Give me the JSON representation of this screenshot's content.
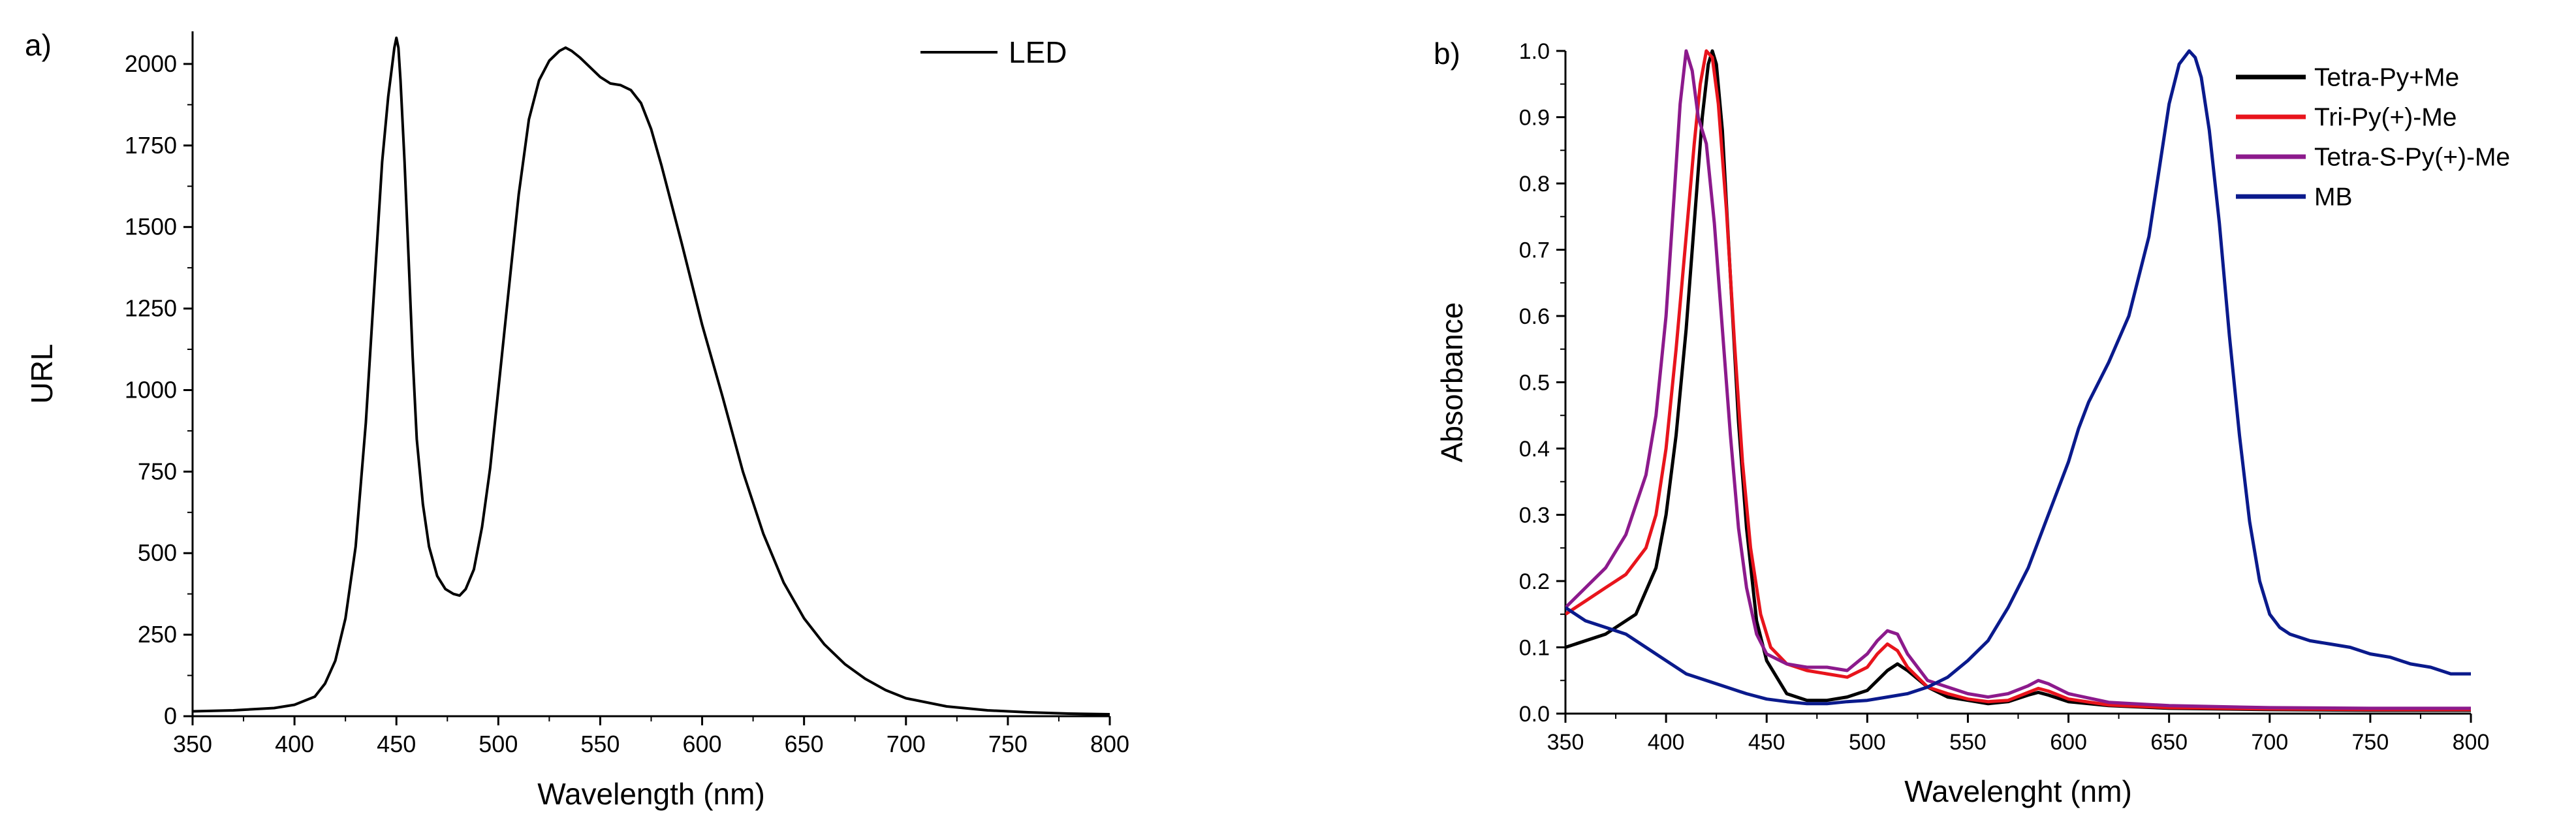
{
  "chart_data": [
    {
      "type": "line",
      "panel_label": "a)",
      "title": "",
      "xlabel": "Wavelength (nm)",
      "ylabel": "URL",
      "xlim": [
        350,
        800
      ],
      "ylim": [
        0,
        2100
      ],
      "xticks": [
        350,
        400,
        450,
        500,
        550,
        600,
        650,
        700,
        750,
        800
      ],
      "yticks": [
        0,
        250,
        500,
        750,
        1000,
        1250,
        1500,
        1750,
        2000
      ],
      "legend_position": "top-right",
      "series": [
        {
          "name": "LED",
          "color": "#000000",
          "x": [
            350,
            370,
            390,
            400,
            410,
            415,
            420,
            425,
            430,
            435,
            440,
            443,
            446,
            448,
            449,
            450,
            451,
            452,
            454,
            456,
            458,
            460,
            463,
            466,
            470,
            474,
            478,
            481,
            484,
            488,
            492,
            496,
            500,
            505,
            510,
            515,
            520,
            525,
            530,
            533,
            536,
            540,
            545,
            550,
            555,
            560,
            565,
            570,
            575,
            580,
            590,
            600,
            610,
            620,
            630,
            640,
            650,
            660,
            670,
            680,
            690,
            700,
            720,
            740,
            760,
            780,
            800
          ],
          "y": [
            15,
            18,
            25,
            35,
            60,
            100,
            170,
            300,
            520,
            900,
            1400,
            1700,
            1900,
            2000,
            2050,
            2080,
            2050,
            1950,
            1700,
            1400,
            1100,
            850,
            650,
            520,
            430,
            390,
            375,
            370,
            390,
            450,
            580,
            760,
            1000,
            1300,
            1600,
            1830,
            1950,
            2010,
            2040,
            2050,
            2040,
            2020,
            1990,
            1960,
            1940,
            1935,
            1920,
            1880,
            1800,
            1690,
            1450,
            1200,
            980,
            750,
            560,
            410,
            300,
            220,
            160,
            115,
            80,
            55,
            30,
            18,
            12,
            8,
            6
          ]
        }
      ]
    },
    {
      "type": "line",
      "panel_label": "b)",
      "title": "",
      "xlabel": "Wavelenght (nm)",
      "ylabel": "Absorbance",
      "xlim": [
        350,
        800
      ],
      "ylim": [
        0,
        1.0
      ],
      "xticks": [
        350,
        400,
        450,
        500,
        550,
        600,
        650,
        700,
        750,
        800
      ],
      "yticks": [
        0.0,
        0.1,
        0.2,
        0.3,
        0.4,
        0.5,
        0.6,
        0.7,
        0.8,
        0.9,
        1.0
      ],
      "ytick_labels": [
        "0.0",
        "0.1",
        "0.2",
        "0.3",
        "0.4",
        "0.5",
        "0.6",
        "0.7",
        "0.8",
        "0.9",
        "1.0"
      ],
      "legend_position": "top-right",
      "series": [
        {
          "name": "Tetra-Py+Me",
          "color": "#000000",
          "x": [
            350,
            370,
            385,
            395,
            400,
            405,
            410,
            414,
            418,
            421,
            423,
            425,
            428,
            432,
            436,
            440,
            445,
            450,
            460,
            470,
            480,
            490,
            500,
            505,
            510,
            515,
            520,
            530,
            540,
            550,
            560,
            570,
            580,
            585,
            590,
            600,
            620,
            650,
            700,
            750,
            800
          ],
          "y": [
            0.1,
            0.12,
            0.15,
            0.22,
            0.3,
            0.42,
            0.58,
            0.74,
            0.9,
            0.98,
            1.0,
            0.98,
            0.88,
            0.66,
            0.44,
            0.28,
            0.14,
            0.08,
            0.03,
            0.02,
            0.02,
            0.025,
            0.035,
            0.05,
            0.065,
            0.075,
            0.065,
            0.04,
            0.025,
            0.02,
            0.015,
            0.018,
            0.028,
            0.032,
            0.028,
            0.018,
            0.012,
            0.008,
            0.006,
            0.005,
            0.005
          ]
        },
        {
          "name": "Tri-Py(+)-Me",
          "color": "#e8141c",
          "x": [
            350,
            360,
            370,
            380,
            390,
            395,
            400,
            405,
            410,
            414,
            417,
            420,
            423,
            426,
            430,
            434,
            438,
            442,
            447,
            452,
            460,
            470,
            480,
            490,
            500,
            505,
            510,
            515,
            520,
            530,
            540,
            550,
            560,
            570,
            580,
            585,
            590,
            600,
            620,
            650,
            700,
            750,
            800
          ],
          "y": [
            0.15,
            0.17,
            0.19,
            0.21,
            0.25,
            0.3,
            0.4,
            0.55,
            0.72,
            0.86,
            0.95,
            1.0,
            0.99,
            0.92,
            0.76,
            0.56,
            0.38,
            0.25,
            0.15,
            0.1,
            0.075,
            0.065,
            0.06,
            0.055,
            0.07,
            0.09,
            0.105,
            0.095,
            0.07,
            0.04,
            0.03,
            0.022,
            0.018,
            0.02,
            0.032,
            0.038,
            0.034,
            0.022,
            0.013,
            0.009,
            0.007,
            0.006,
            0.006
          ]
        },
        {
          "name": "Tetra-S-Py(+)-Me",
          "color": "#8c1a8c",
          "x": [
            350,
            360,
            370,
            380,
            390,
            395,
            400,
            404,
            407,
            410,
            413,
            416,
            420,
            424,
            428,
            432,
            436,
            440,
            445,
            450,
            460,
            470,
            480,
            490,
            500,
            505,
            510,
            515,
            520,
            530,
            540,
            550,
            560,
            570,
            580,
            585,
            590,
            600,
            620,
            650,
            700,
            750,
            800
          ],
          "y": [
            0.16,
            0.19,
            0.22,
            0.27,
            0.36,
            0.45,
            0.6,
            0.78,
            0.92,
            1.0,
            0.97,
            0.9,
            0.86,
            0.74,
            0.58,
            0.42,
            0.28,
            0.19,
            0.12,
            0.09,
            0.075,
            0.07,
            0.07,
            0.065,
            0.09,
            0.11,
            0.125,
            0.12,
            0.09,
            0.05,
            0.04,
            0.03,
            0.025,
            0.03,
            0.042,
            0.05,
            0.045,
            0.03,
            0.017,
            0.012,
            0.009,
            0.008,
            0.008
          ]
        },
        {
          "name": "MB",
          "color": "#0a1a8c",
          "x": [
            350,
            360,
            370,
            380,
            390,
            400,
            410,
            420,
            430,
            440,
            450,
            460,
            470,
            480,
            490,
            500,
            510,
            520,
            530,
            540,
            550,
            560,
            570,
            580,
            590,
            600,
            605,
            610,
            615,
            620,
            630,
            640,
            645,
            650,
            655,
            660,
            663,
            666,
            670,
            675,
            680,
            685,
            690,
            695,
            700,
            705,
            710,
            720,
            730,
            740,
            750,
            760,
            770,
            780,
            790,
            800
          ],
          "y": [
            0.16,
            0.14,
            0.13,
            0.12,
            0.1,
            0.08,
            0.06,
            0.05,
            0.04,
            0.03,
            0.022,
            0.018,
            0.015,
            0.015,
            0.018,
            0.02,
            0.025,
            0.03,
            0.04,
            0.055,
            0.08,
            0.11,
            0.16,
            0.22,
            0.3,
            0.38,
            0.43,
            0.47,
            0.5,
            0.53,
            0.6,
            0.72,
            0.82,
            0.92,
            0.98,
            1.0,
            0.99,
            0.96,
            0.88,
            0.74,
            0.57,
            0.42,
            0.29,
            0.2,
            0.15,
            0.13,
            0.12,
            0.11,
            0.105,
            0.1,
            0.09,
            0.085,
            0.075,
            0.07,
            0.06,
            0.06
          ]
        }
      ]
    }
  ]
}
